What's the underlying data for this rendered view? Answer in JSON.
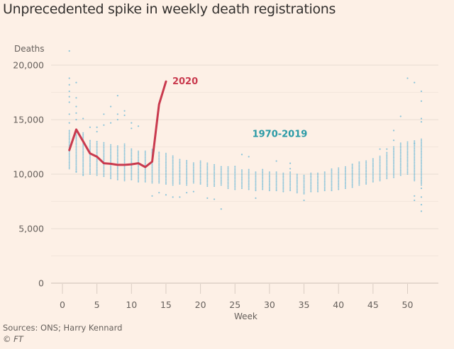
{
  "title": "Unprecedented spike in weekly death registrations",
  "source": "Sources: ONS; Harry Kennard",
  "copyright": "© FT",
  "colors": {
    "background": "#fdf0e6",
    "line_2020": "#c93a4e",
    "scatter": "#7fc0d8",
    "label_historic": "#2a9aa6",
    "grid": "#e8dcd2"
  },
  "chart_data": {
    "type": "scatter",
    "title": "Unprecedented spike in weekly death registrations",
    "xlabel": "Week",
    "ylabel": "Deaths",
    "xlim": [
      0,
      54
    ],
    "ylim": [
      0,
      20000
    ],
    "x_ticks": [
      0,
      5,
      10,
      15,
      20,
      25,
      30,
      35,
      40,
      45,
      50
    ],
    "y_ticks": [
      0,
      5000,
      10000,
      15000,
      20000
    ],
    "y_tick_labels": [
      "0",
      "5,000",
      "10,000",
      "15,000",
      "20,000"
    ],
    "grid": true,
    "series": [
      {
        "name": "1970-2019",
        "kind": "scatter-range",
        "label": "1970-2019",
        "weeks": [
          1,
          2,
          3,
          4,
          5,
          6,
          7,
          8,
          9,
          10,
          11,
          12,
          13,
          14,
          15,
          16,
          17,
          18,
          19,
          20,
          21,
          22,
          23,
          24,
          25,
          26,
          27,
          28,
          29,
          30,
          31,
          32,
          33,
          34,
          35,
          36,
          37,
          38,
          39,
          40,
          41,
          42,
          43,
          44,
          45,
          46,
          47,
          48,
          49,
          50,
          51,
          52
        ],
        "range_low": [
          10500,
          10300,
          10000,
          10000,
          9900,
          9800,
          9600,
          9500,
          9400,
          9500,
          9300,
          9300,
          9200,
          9200,
          9100,
          9000,
          9100,
          9000,
          9200,
          9100,
          8900,
          8900,
          9000,
          8700,
          8600,
          8700,
          8600,
          8500,
          8600,
          8500,
          8500,
          8400,
          8500,
          8300,
          8200,
          8400,
          8400,
          8500,
          8500,
          8600,
          8700,
          8800,
          9000,
          9100,
          9300,
          9400,
          9600,
          9700,
          9900,
          10000,
          9400,
          9000
        ],
        "range_high": [
          14000,
          13900,
          13800,
          13200,
          13100,
          12900,
          12800,
          12700,
          12800,
          12400,
          12200,
          12100,
          12300,
          12100,
          12000,
          11700,
          11400,
          11300,
          11100,
          11200,
          11100,
          10900,
          10800,
          10700,
          10700,
          10500,
          10500,
          10300,
          10500,
          10300,
          10300,
          10200,
          10300,
          10100,
          10000,
          10200,
          10200,
          10300,
          10500,
          10600,
          10700,
          10900,
          11100,
          11200,
          11500,
          11700,
          12000,
          12500,
          12900,
          13000,
          13100,
          13200
        ],
        "outliers": [
          [
            1,
            21300
          ],
          [
            1,
            18800
          ],
          [
            1,
            18200
          ],
          [
            1,
            17600
          ],
          [
            1,
            17100
          ],
          [
            1,
            16600
          ],
          [
            1,
            15500
          ],
          [
            1,
            14700
          ],
          [
            2,
            18400
          ],
          [
            2,
            17000
          ],
          [
            2,
            16200
          ],
          [
            2,
            15600
          ],
          [
            2,
            15000
          ],
          [
            2,
            10200
          ],
          [
            3,
            15100
          ],
          [
            3,
            9900
          ],
          [
            4,
            14300
          ],
          [
            5,
            14300
          ],
          [
            5,
            13900
          ],
          [
            6,
            15500
          ],
          [
            6,
            14500
          ],
          [
            7,
            16200
          ],
          [
            7,
            14700
          ],
          [
            8,
            17200
          ],
          [
            8,
            15500
          ],
          [
            8,
            15000
          ],
          [
            9,
            15800
          ],
          [
            9,
            15400
          ],
          [
            10,
            14700
          ],
          [
            10,
            14200
          ],
          [
            11,
            14400
          ],
          [
            13,
            8000
          ],
          [
            14,
            8300
          ],
          [
            15,
            8100
          ],
          [
            16,
            7900
          ],
          [
            17,
            7900
          ],
          [
            18,
            8300
          ],
          [
            19,
            8400
          ],
          [
            21,
            7800
          ],
          [
            22,
            7700
          ],
          [
            23,
            6800
          ],
          [
            26,
            11800
          ],
          [
            27,
            11600
          ],
          [
            28,
            7800
          ],
          [
            31,
            11200
          ],
          [
            33,
            11000
          ],
          [
            33,
            10500
          ],
          [
            35,
            7600
          ],
          [
            46,
            12300
          ],
          [
            47,
            12300
          ],
          [
            48,
            13100
          ],
          [
            48,
            14000
          ],
          [
            49,
            15300
          ],
          [
            50,
            18800
          ],
          [
            51,
            18400
          ],
          [
            51,
            12800
          ],
          [
            51,
            8000
          ],
          [
            51,
            7600
          ],
          [
            52,
            17600
          ],
          [
            52,
            16700
          ],
          [
            52,
            15100
          ],
          [
            52,
            14800
          ],
          [
            52,
            8700
          ],
          [
            52,
            7900
          ],
          [
            52,
            7200
          ],
          [
            52,
            6600
          ]
        ]
      },
      {
        "name": "2020",
        "kind": "line",
        "label": "2020",
        "x": [
          1,
          2,
          3,
          4,
          5,
          6,
          7,
          8,
          9,
          10,
          11,
          12,
          13,
          14,
          15
        ],
        "y": [
          12200,
          14100,
          13000,
          11900,
          11600,
          11000,
          10950,
          10850,
          10850,
          10900,
          11000,
          10650,
          11150,
          16400,
          18500
        ]
      }
    ]
  }
}
